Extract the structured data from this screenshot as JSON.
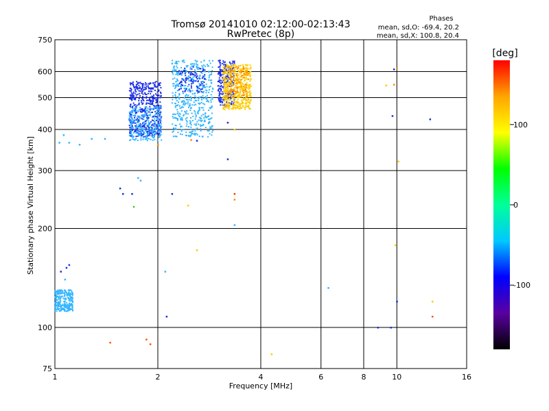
{
  "chart_data": {
    "type": "scatter",
    "title": "Tromsø 20141010 02:12:00-02:13:43",
    "subtitle": "RwPretec (8p)",
    "xlabel": "Frequency [MHz]",
    "ylabel": "Stationary phase Virtual Height [km]",
    "x_scale": "log",
    "y_scale": "log",
    "xlim": [
      1,
      16
    ],
    "ylim": [
      75,
      750
    ],
    "x_ticks": [
      1,
      2,
      4,
      6,
      8,
      10,
      16
    ],
    "y_ticks": [
      75,
      100,
      200,
      300,
      400,
      500,
      600,
      750
    ],
    "x_grid": [
      2,
      4,
      6,
      8,
      10
    ],
    "y_grid": [
      100,
      200,
      300,
      400,
      500,
      600
    ],
    "phases_header": "Phases",
    "phases_lines": [
      "mean, sd,O: -69.4, 20.2",
      "mean, sd,X: 100.8, 20.4"
    ],
    "colorbar": {
      "label": "[deg]",
      "range": [
        -180,
        180
      ],
      "ticks": [
        100,
        0,
        -100
      ],
      "colors": [
        "#000000",
        "#5a00a0",
        "#0000ff",
        "#00c8ff",
        "#00ff9a",
        "#00ff00",
        "#ffff00",
        "#ffa500",
        "#ff0000"
      ]
    },
    "clusters": [
      {
        "x": [
          1.65,
          2.05
        ],
        "y": [
          380,
          560
        ],
        "color": "#1a2ce8",
        "density": "high"
      },
      {
        "x": [
          1.65,
          2.05
        ],
        "y": [
          370,
          470
        ],
        "color": "#33b5ff",
        "density": "medium"
      },
      {
        "x": [
          2.2,
          2.9
        ],
        "y": [
          380,
          650
        ],
        "color": "#33b5ff",
        "density": "high"
      },
      {
        "x": [
          2.3,
          2.75
        ],
        "y": [
          520,
          620
        ],
        "color": "#1a2ce8",
        "density": "low"
      },
      {
        "x": [
          3.0,
          3.35
        ],
        "y": [
          470,
          650
        ],
        "color": "#1a2ce8",
        "density": "medium"
      },
      {
        "x": [
          3.1,
          3.75
        ],
        "y": [
          460,
          630
        ],
        "color": "#ffcc00",
        "density": "high"
      },
      {
        "x": [
          3.2,
          3.7
        ],
        "y": [
          500,
          620
        ],
        "color": "#ff8c00",
        "density": "low"
      },
      {
        "x": [
          1.0,
          1.13
        ],
        "y": [
          112,
          130
        ],
        "color": "#33b5ff",
        "density": "medium"
      }
    ],
    "points": [
      {
        "x": 1.03,
        "y": 365,
        "c": "#33b5ff"
      },
      {
        "x": 1.06,
        "y": 385,
        "c": "#33b5ff"
      },
      {
        "x": 1.1,
        "y": 365,
        "c": "#33b5ff"
      },
      {
        "x": 1.18,
        "y": 360,
        "c": "#33b5ff"
      },
      {
        "x": 1.28,
        "y": 375,
        "c": "#33b5ff"
      },
      {
        "x": 1.4,
        "y": 375,
        "c": "#33b5ff"
      },
      {
        "x": 1.55,
        "y": 265,
        "c": "#1a2ce8"
      },
      {
        "x": 1.58,
        "y": 255,
        "c": "#1a2ce8"
      },
      {
        "x": 1.68,
        "y": 255,
        "c": "#1a2ce8"
      },
      {
        "x": 1.75,
        "y": 285,
        "c": "#33b5ff"
      },
      {
        "x": 1.78,
        "y": 280,
        "c": "#33b5ff"
      },
      {
        "x": 1.7,
        "y": 233,
        "c": "#33cc33"
      },
      {
        "x": 2.0,
        "y": 360,
        "c": "#ff8c00"
      },
      {
        "x": 2.2,
        "y": 255,
        "c": "#1a2ce8"
      },
      {
        "x": 2.5,
        "y": 372,
        "c": "#ff8c00"
      },
      {
        "x": 2.6,
        "y": 370,
        "c": "#1a2ce8"
      },
      {
        "x": 2.45,
        "y": 235,
        "c": "#ffcc00"
      },
      {
        "x": 2.6,
        "y": 172,
        "c": "#ffcc00"
      },
      {
        "x": 2.1,
        "y": 148,
        "c": "#33b5ff"
      },
      {
        "x": 2.12,
        "y": 108,
        "c": "#1a2ce8"
      },
      {
        "x": 3.2,
        "y": 420,
        "c": "#1a2ce8"
      },
      {
        "x": 3.2,
        "y": 325,
        "c": "#1a2ce8"
      },
      {
        "x": 3.35,
        "y": 255,
        "c": "#ff3300"
      },
      {
        "x": 3.35,
        "y": 245,
        "c": "#ff8c00"
      },
      {
        "x": 3.35,
        "y": 205,
        "c": "#33b5ff"
      },
      {
        "x": 3.35,
        "y": 400,
        "c": "#ffcc00"
      },
      {
        "x": 1.04,
        "y": 148,
        "c": "#1a2ce8"
      },
      {
        "x": 1.08,
        "y": 152,
        "c": "#1a2ce8"
      },
      {
        "x": 1.1,
        "y": 155,
        "c": "#1a2ce8"
      },
      {
        "x": 1.07,
        "y": 140,
        "c": "#33b5ff"
      },
      {
        "x": 1.45,
        "y": 90,
        "c": "#ff5500"
      },
      {
        "x": 1.85,
        "y": 92,
        "c": "#ff5500"
      },
      {
        "x": 1.9,
        "y": 89,
        "c": "#ff5500"
      },
      {
        "x": 4.3,
        "y": 83,
        "c": "#ffcc00"
      },
      {
        "x": 6.3,
        "y": 132,
        "c": "#33b5ff"
      },
      {
        "x": 8.8,
        "y": 100,
        "c": "#1a2ce8"
      },
      {
        "x": 9.6,
        "y": 100,
        "c": "#1a2ce8"
      },
      {
        "x": 9.8,
        "y": 610,
        "c": "#1a2ce8"
      },
      {
        "x": 10.0,
        "y": 615,
        "c": "#ff8c00"
      },
      {
        "x": 9.3,
        "y": 545,
        "c": "#ffcc00"
      },
      {
        "x": 9.8,
        "y": 548,
        "c": "#ff8c00"
      },
      {
        "x": 9.7,
        "y": 440,
        "c": "#1a2ce8"
      },
      {
        "x": 10.1,
        "y": 320,
        "c": "#ffcc00"
      },
      {
        "x": 9.9,
        "y": 178,
        "c": "#ffcc00"
      },
      {
        "x": 10.0,
        "y": 120,
        "c": "#1a2ce8"
      },
      {
        "x": 12.5,
        "y": 430,
        "c": "#1a2ce8"
      },
      {
        "x": 12.7,
        "y": 120,
        "c": "#ffcc00"
      },
      {
        "x": 12.7,
        "y": 108,
        "c": "#ff5500"
      }
    ]
  }
}
